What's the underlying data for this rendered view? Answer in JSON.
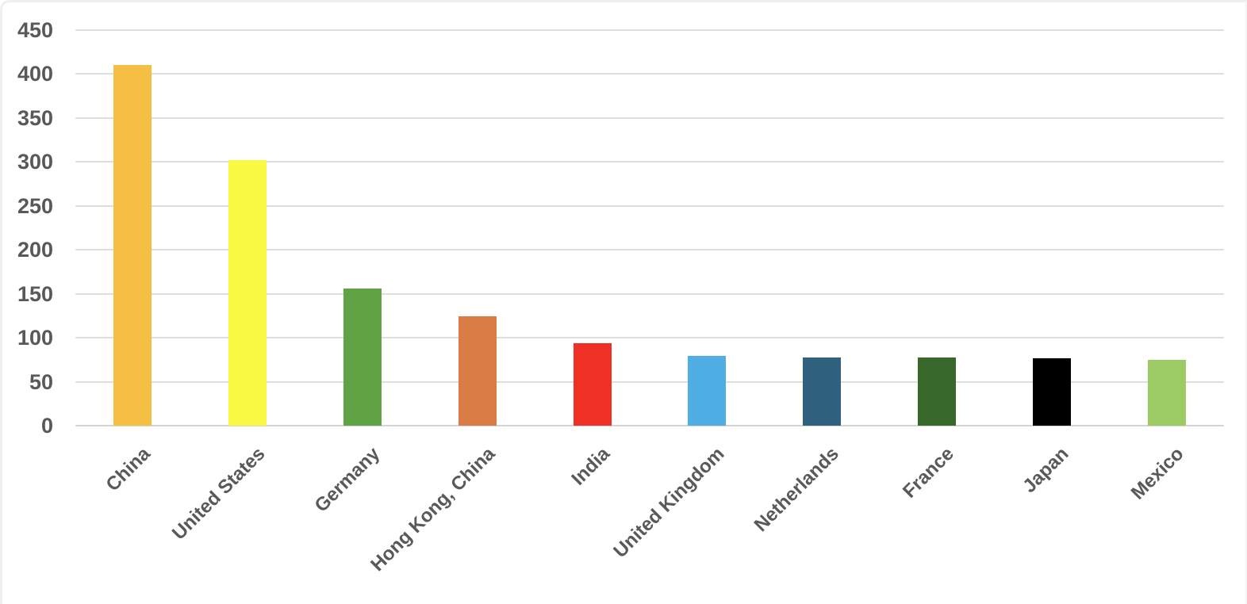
{
  "chart_data": {
    "type": "bar",
    "title": "",
    "xlabel": "",
    "ylabel": "",
    "categories": [
      "China",
      "United States",
      "Germany",
      "Hong Kong, China",
      "India",
      "United Kingdom",
      "Netherlands",
      "France",
      "Japan",
      "Mexico"
    ],
    "values": [
      410,
      302,
      156,
      124,
      94,
      79,
      78,
      78,
      77,
      75
    ],
    "bar_colors": [
      "#F4BF43",
      "#FAF943",
      "#5FA344",
      "#D97C45",
      "#EE3124",
      "#4FAEE4",
      "#30617E",
      "#38692B",
      "#000000",
      "#9CCB63"
    ],
    "ylim": [
      0,
      450
    ],
    "yticks": [
      0,
      50,
      100,
      150,
      200,
      250,
      300,
      350,
      400,
      450
    ],
    "grid": true,
    "legend": false,
    "bar_orientation": "vertical",
    "x_label_rotation_deg": 45
  },
  "style": {
    "tick_label_color": "#595959",
    "gridline_color": "#DEDEDE",
    "baseline_color": "#D4D4D4",
    "background_color": "#FFFFFF"
  }
}
